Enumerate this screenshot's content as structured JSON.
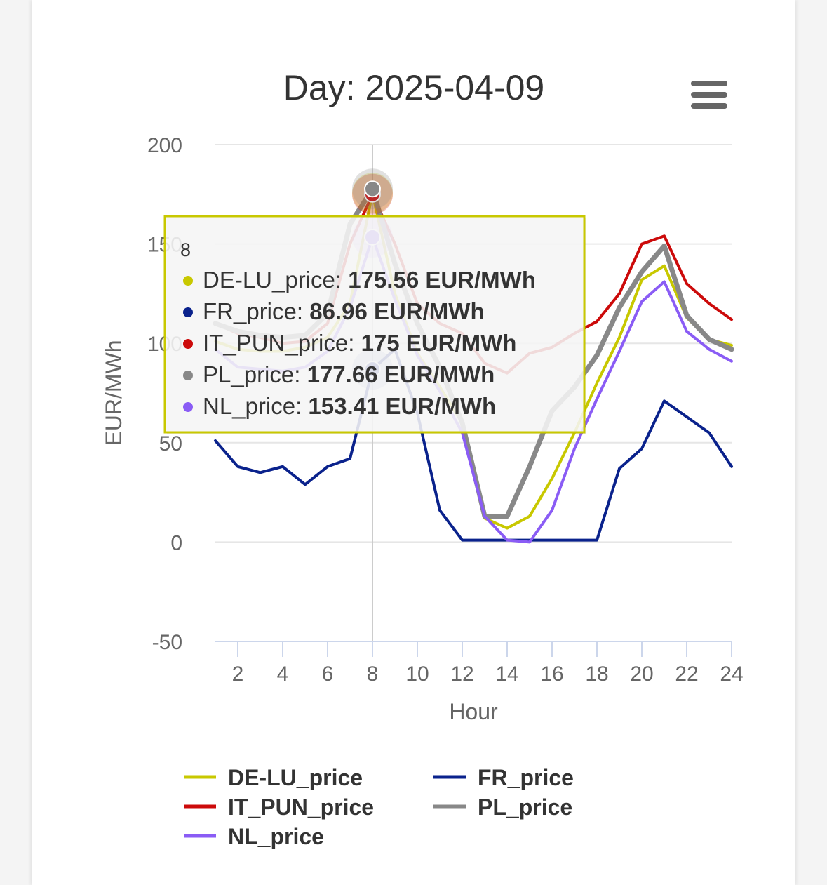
{
  "chart_data": {
    "type": "line",
    "title": "Day: 2025-04-09",
    "xlabel": "Hour",
    "ylabel": "EUR/MWh",
    "xlim": [
      1,
      24
    ],
    "ylim": [
      -50,
      200
    ],
    "x_ticks": [
      2,
      4,
      6,
      8,
      10,
      12,
      14,
      16,
      18,
      20,
      22,
      24
    ],
    "y_ticks": [
      -50,
      0,
      50,
      100,
      150,
      200
    ],
    "x": [
      1,
      2,
      3,
      4,
      5,
      6,
      7,
      8,
      9,
      10,
      11,
      12,
      13,
      14,
      15,
      16,
      17,
      18,
      19,
      20,
      21,
      22,
      23,
      24
    ],
    "grid": true,
    "legend_position": "bottom",
    "series": [
      {
        "name": "DE-LU_price",
        "color": "#c8c800",
        "values": [
          101,
          97,
          96,
          96,
          98,
          103,
          120,
          175.56,
          125,
          95,
          78,
          60,
          12,
          7,
          13,
          32,
          55,
          80,
          103,
          132,
          139,
          113,
          102,
          99
        ]
      },
      {
        "name": "FR_price",
        "color": "#0a228c",
        "values": [
          51,
          38,
          35,
          38,
          29,
          38,
          42,
          86.96,
          97,
          65,
          16,
          1,
          1,
          1,
          1,
          1,
          1,
          1,
          37,
          47,
          71,
          63,
          55,
          38
        ]
      },
      {
        "name": "IT_PUN_price",
        "color": "#cc0a0a",
        "values": [
          110,
          105,
          103,
          100,
          101,
          110,
          150,
          175,
          150,
          120,
          110,
          105,
          90,
          85,
          95,
          98,
          105,
          111,
          125,
          150,
          154,
          130,
          120,
          112
        ]
      },
      {
        "name": "PL_price",
        "color": "#888888",
        "values": [
          110,
          106,
          104,
          103,
          104,
          115,
          160,
          177.66,
          140,
          110,
          88,
          60,
          13,
          13,
          38,
          66,
          78,
          94,
          118,
          136,
          149,
          114,
          102,
          97
        ]
      },
      {
        "name": "NL_price",
        "color": "#8a5cf5",
        "values": [
          97,
          88,
          87,
          86,
          88,
          96,
          118,
          153.41,
          122,
          94,
          76,
          55,
          13,
          1,
          0,
          16,
          47,
          72,
          96,
          121,
          131,
          106,
          97,
          91
        ]
      }
    ],
    "tooltip": {
      "header": "8",
      "rows": [
        {
          "label": "DE-LU_price: ",
          "value": "175.56 EUR/MWh",
          "color": "#c8c800"
        },
        {
          "label": "FR_price: ",
          "value": "86.96 EUR/MWh",
          "color": "#0a228c"
        },
        {
          "label": "IT_PUN_price: ",
          "value": "175 EUR/MWh",
          "color": "#cc0a0a"
        },
        {
          "label": "PL_price: ",
          "value": "177.66 EUR/MWh",
          "color": "#888888"
        },
        {
          "label": "NL_price: ",
          "value": "153.41 EUR/MWh",
          "color": "#8a5cf5"
        }
      ]
    }
  },
  "menu_icon": "hamburger-menu-icon"
}
